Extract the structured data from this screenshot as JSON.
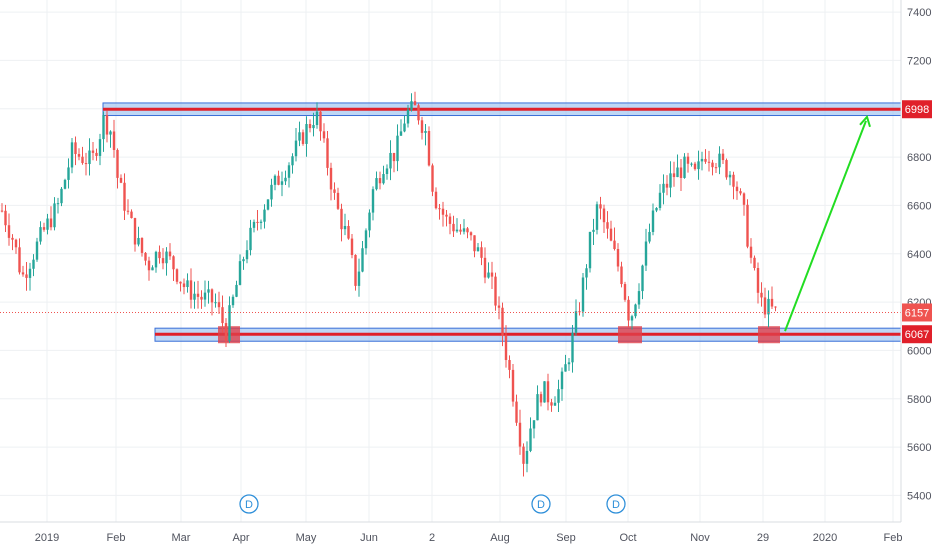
{
  "chart_data": {
    "type": "candlestick",
    "symbol_context": "daily price chart, 2019",
    "x_ticks": [
      "2019",
      "Feb",
      "Mar",
      "Apr",
      "May",
      "Jun",
      "2",
      "Aug",
      "Sep",
      "Oct",
      "Nov",
      "29",
      "2020",
      "Feb"
    ],
    "y_ticks": [
      5400,
      5600,
      5800,
      6000,
      6200,
      6400,
      6600,
      6800,
      7000,
      7200,
      7400
    ],
    "ylim": [
      5290,
      7450
    ],
    "grid": true,
    "up_color": "#26a69a",
    "down_color": "#ef5350",
    "price_labels": [
      {
        "text": "6998",
        "value": 6998,
        "color": "#e0202a"
      },
      {
        "text": "6157",
        "value": 6157,
        "color": "#ef5350"
      },
      {
        "text": "6067",
        "value": 6067,
        "color": "#e0202a"
      }
    ],
    "current_price": 6157,
    "resistance_zone": {
      "value": 6998,
      "low": 6972,
      "high": 7024
    },
    "support_zone": {
      "value": 6067,
      "low": 6038,
      "high": 6092
    },
    "support_touches": [
      "late Mar",
      "late Sep",
      "early Dec"
    ],
    "projection_arrow": {
      "from": 6080,
      "to": 6950,
      "color": "#22dd22"
    },
    "dividend_markers": [
      {
        "label": "D",
        "near": "Apr"
      },
      {
        "label": "D",
        "near": "Aug/Sep"
      },
      {
        "label": "D",
        "near": "Oct"
      }
    ],
    "series_path": [
      [
        0,
        6600
      ],
      [
        14,
        6450
      ],
      [
        22,
        6300
      ],
      [
        42,
        6480
      ],
      [
        58,
        6600
      ],
      [
        72,
        6820
      ],
      [
        92,
        6780
      ],
      [
        104,
        6960
      ],
      [
        112,
        6900
      ],
      [
        118,
        6700
      ],
      [
        128,
        6560
      ],
      [
        138,
        6440
      ],
      [
        148,
        6350
      ],
      [
        160,
        6420
      ],
      [
        172,
        6360
      ],
      [
        185,
        6260
      ],
      [
        200,
        6220
      ],
      [
        215,
        6200
      ],
      [
        226,
        6080
      ],
      [
        236,
        6260
      ],
      [
        246,
        6430
      ],
      [
        256,
        6520
      ],
      [
        268,
        6640
      ],
      [
        280,
        6720
      ],
      [
        292,
        6800
      ],
      [
        304,
        6900
      ],
      [
        316,
        6980
      ],
      [
        326,
        6800
      ],
      [
        336,
        6600
      ],
      [
        346,
        6480
      ],
      [
        356,
        6280
      ],
      [
        362,
        6400
      ],
      [
        372,
        6650
      ],
      [
        384,
        6780
      ],
      [
        396,
        6820
      ],
      [
        406,
        6980
      ],
      [
        416,
        7000
      ],
      [
        426,
        6900
      ],
      [
        434,
        6640
      ],
      [
        446,
        6540
      ],
      [
        458,
        6500
      ],
      [
        470,
        6460
      ],
      [
        482,
        6380
      ],
      [
        494,
        6240
      ],
      [
        502,
        6080
      ],
      [
        510,
        5900
      ],
      [
        518,
        5700
      ],
      [
        524,
        5540
      ],
      [
        532,
        5720
      ],
      [
        542,
        5840
      ],
      [
        550,
        5800
      ],
      [
        560,
        5840
      ],
      [
        570,
        6000
      ],
      [
        580,
        6200
      ],
      [
        590,
        6450
      ],
      [
        598,
        6600
      ],
      [
        606,
        6500
      ],
      [
        614,
        6400
      ],
      [
        622,
        6300
      ],
      [
        630,
        6120
      ],
      [
        640,
        6300
      ],
      [
        650,
        6500
      ],
      [
        660,
        6640
      ],
      [
        672,
        6720
      ],
      [
        684,
        6760
      ],
      [
        696,
        6720
      ],
      [
        704,
        6820
      ],
      [
        714,
        6800
      ],
      [
        724,
        6760
      ],
      [
        734,
        6720
      ],
      [
        744,
        6560
      ],
      [
        752,
        6350
      ],
      [
        760,
        6200
      ],
      [
        770,
        6170
      ],
      [
        776,
        6157
      ]
    ]
  }
}
